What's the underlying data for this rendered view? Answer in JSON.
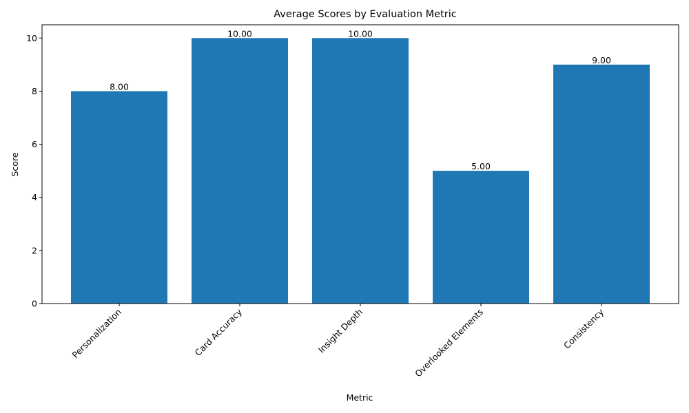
{
  "chart_data": {
    "type": "bar",
    "title": "Average Scores by Evaluation Metric",
    "xlabel": "Metric",
    "ylabel": "Score",
    "categories": [
      "Personalization",
      "Card Accuracy",
      "Insight Depth",
      "Overlooked Elements",
      "Consistency"
    ],
    "values": [
      8,
      10,
      10,
      5,
      9
    ],
    "data_labels": [
      "8.00",
      "10.00",
      "10.00",
      "5.00",
      "9.00"
    ],
    "y_ticks": [
      0,
      2,
      4,
      6,
      8,
      10
    ],
    "ylim": [
      0,
      10.5
    ],
    "grid": false,
    "legend": "none",
    "bar_color": "#1f77b4"
  }
}
